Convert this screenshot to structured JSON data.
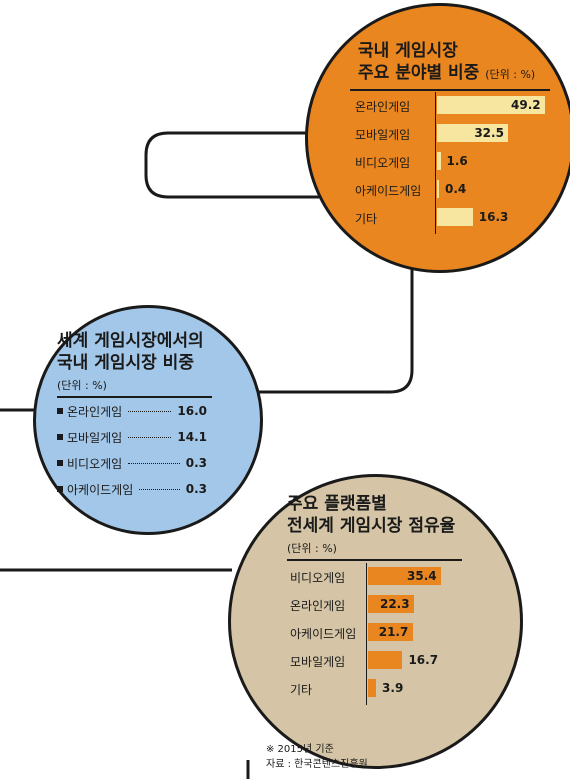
{
  "chart_data": [
    {
      "type": "bar",
      "title": "국내 게임시장 주요 분야별 비중",
      "unit": "(단위 : %)",
      "categories": [
        "온라인게임",
        "모바일게임",
        "비디오게임",
        "아케이드게임",
        "기타"
      ],
      "values": [
        49.2,
        32.5,
        1.6,
        0.4,
        16.3
      ],
      "value_labels": [
        "49.2",
        "32.5",
        "1.6",
        "0.4",
        "16.3"
      ],
      "bar_color": "#f6e6a0",
      "circle_color": "#e9861f"
    },
    {
      "type": "table",
      "title": "세계 게임시장에서의 국내 게임시장 비중",
      "unit": "(단위 : %)",
      "categories": [
        "온라인게임",
        "모바일게임",
        "비디오게임",
        "아케이드게임"
      ],
      "values": [
        16.0,
        14.1,
        0.3,
        0.3
      ],
      "value_labels": [
        "16.0",
        "14.1",
        "0.3",
        "0.3"
      ],
      "circle_color": "#a3c7e8"
    },
    {
      "type": "bar",
      "title": "주요 플랫폼별 전세계 게임시장 점유율",
      "unit": "(단위 : %)",
      "categories": [
        "비디오게임",
        "온라인게임",
        "아케이드게임",
        "모바일게임",
        "기타"
      ],
      "values": [
        35.4,
        22.3,
        21.7,
        16.7,
        3.9
      ],
      "value_labels": [
        "35.4",
        "22.3",
        "21.7",
        "16.7",
        "3.9"
      ],
      "bar_color": "#e9861f",
      "circle_color": "#d5c5a6"
    }
  ],
  "charts": {
    "orange": {
      "title_line1": "국내 게임시장",
      "title_line2": "주요 분야별 비중",
      "unit": "(단위 : %)"
    },
    "blue": {
      "title_line1": "세계 게임시장에서의",
      "title_line2": "국내 게임시장 비중",
      "unit": "(단위 : %)"
    },
    "tan": {
      "title_line1": "주요 플랫폼별",
      "title_line2": "전세계 게임시장 점유율",
      "unit": "(단위 : %)"
    }
  },
  "footnote": {
    "line1": "※ 2015년 기준",
    "line2": "자료 : 한국콘텐츠진흥원"
  }
}
